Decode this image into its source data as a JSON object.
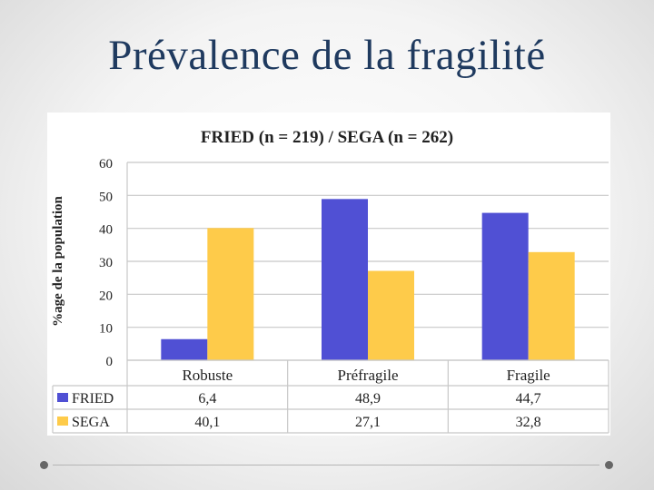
{
  "slide": {
    "title": "Prévalence de la fragilité"
  },
  "chart_data": {
    "type": "bar",
    "title": "FRIED (n = 219) / SEGA (n = 262)",
    "ylabel": "%age de la population",
    "xlabel": "",
    "ylim": [
      0,
      60
    ],
    "yticks": [
      0,
      10,
      20,
      30,
      40,
      50,
      60
    ],
    "categories": [
      "Robuste",
      "Préfragile",
      "Fragile"
    ],
    "grid": true,
    "legend": "data-table",
    "series": [
      {
        "name": "FRIED",
        "values": [
          6.4,
          48.9,
          44.7
        ],
        "labels": [
          "6,4",
          "48,9",
          "44,7"
        ],
        "color": "#5050d4"
      },
      {
        "name": "SEGA",
        "values": [
          40.1,
          27.1,
          32.8
        ],
        "labels": [
          "40,1",
          "27,1",
          "32,8"
        ],
        "color": "#fecb4a"
      }
    ]
  },
  "colors": {
    "title": "#1f3a5f",
    "grid": "#c8c8c8"
  }
}
